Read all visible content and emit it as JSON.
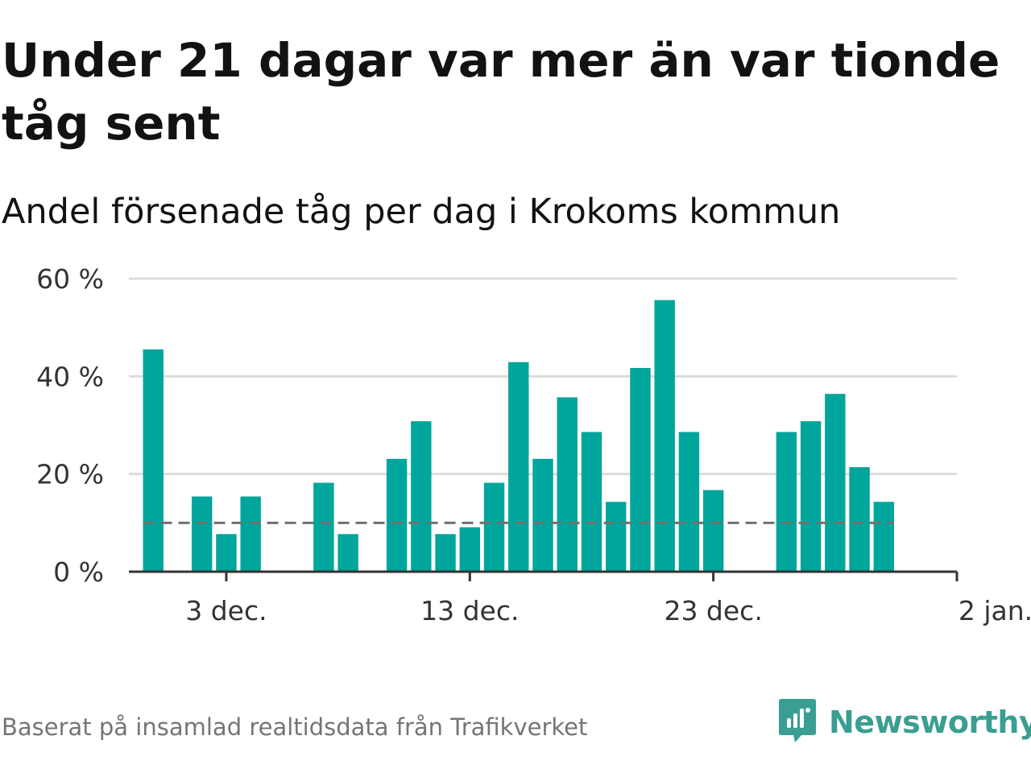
{
  "title": "Under 21 dagar var mer än var tionde tåg sent",
  "subtitle": "Andel försenade tåg per dag i Krokoms kommun",
  "source": "Baserat på insamlad realtidsdata från Trafikverket",
  "brand": {
    "name": "Newsworthy",
    "logo_icon": "newsworthy-logo-icon",
    "color": "#3a9e92"
  },
  "colors": {
    "bar": "#00a59b",
    "grid": "#dcdcdc",
    "axis": "#333333",
    "reference_line": "#707070",
    "tick_text": "#333333"
  },
  "chart_data": {
    "type": "bar",
    "title": "Under 21 dagar var mer än var tionde tåg sent",
    "subtitle": "Andel försenade tåg per dag i Krokoms kommun",
    "xlabel": "",
    "ylabel": "",
    "unit": "%",
    "ylim": [
      0,
      60
    ],
    "y_ticks": [
      0,
      20,
      40,
      60
    ],
    "y_tick_labels": [
      "0 %",
      "20 %",
      "40 %",
      "60 %"
    ],
    "x_ticks": [
      "2025-12-03",
      "2025-12-13",
      "2025-12-23",
      "2026-01-02"
    ],
    "x_tick_labels": [
      "3 dec.",
      "13 dec.",
      "23 dec.",
      "2 jan."
    ],
    "xlim": [
      "2025-11-29",
      "2026-01-02"
    ],
    "grid": true,
    "reference_line": 10,
    "x": [
      "2025-11-30",
      "2025-12-01",
      "2025-12-02",
      "2025-12-03",
      "2025-12-04",
      "2025-12-05",
      "2025-12-06",
      "2025-12-07",
      "2025-12-08",
      "2025-12-09",
      "2025-12-10",
      "2025-12-11",
      "2025-12-12",
      "2025-12-13",
      "2025-12-14",
      "2025-12-15",
      "2025-12-16",
      "2025-12-17",
      "2025-12-18",
      "2025-12-19",
      "2025-12-20",
      "2025-12-21",
      "2025-12-22",
      "2025-12-23",
      "2025-12-24",
      "2025-12-25",
      "2025-12-26",
      "2025-12-27",
      "2025-12-28",
      "2025-12-29",
      "2025-12-30",
      "2025-12-31"
    ],
    "values": [
      45.5,
      null,
      15.4,
      7.7,
      15.4,
      null,
      null,
      18.2,
      7.7,
      null,
      23.1,
      30.8,
      7.7,
      9.1,
      18.2,
      42.9,
      23.1,
      35.7,
      28.6,
      14.3,
      41.7,
      55.6,
      28.6,
      16.7,
      null,
      null,
      28.6,
      30.8,
      36.4,
      21.4,
      14.3,
      null
    ]
  }
}
